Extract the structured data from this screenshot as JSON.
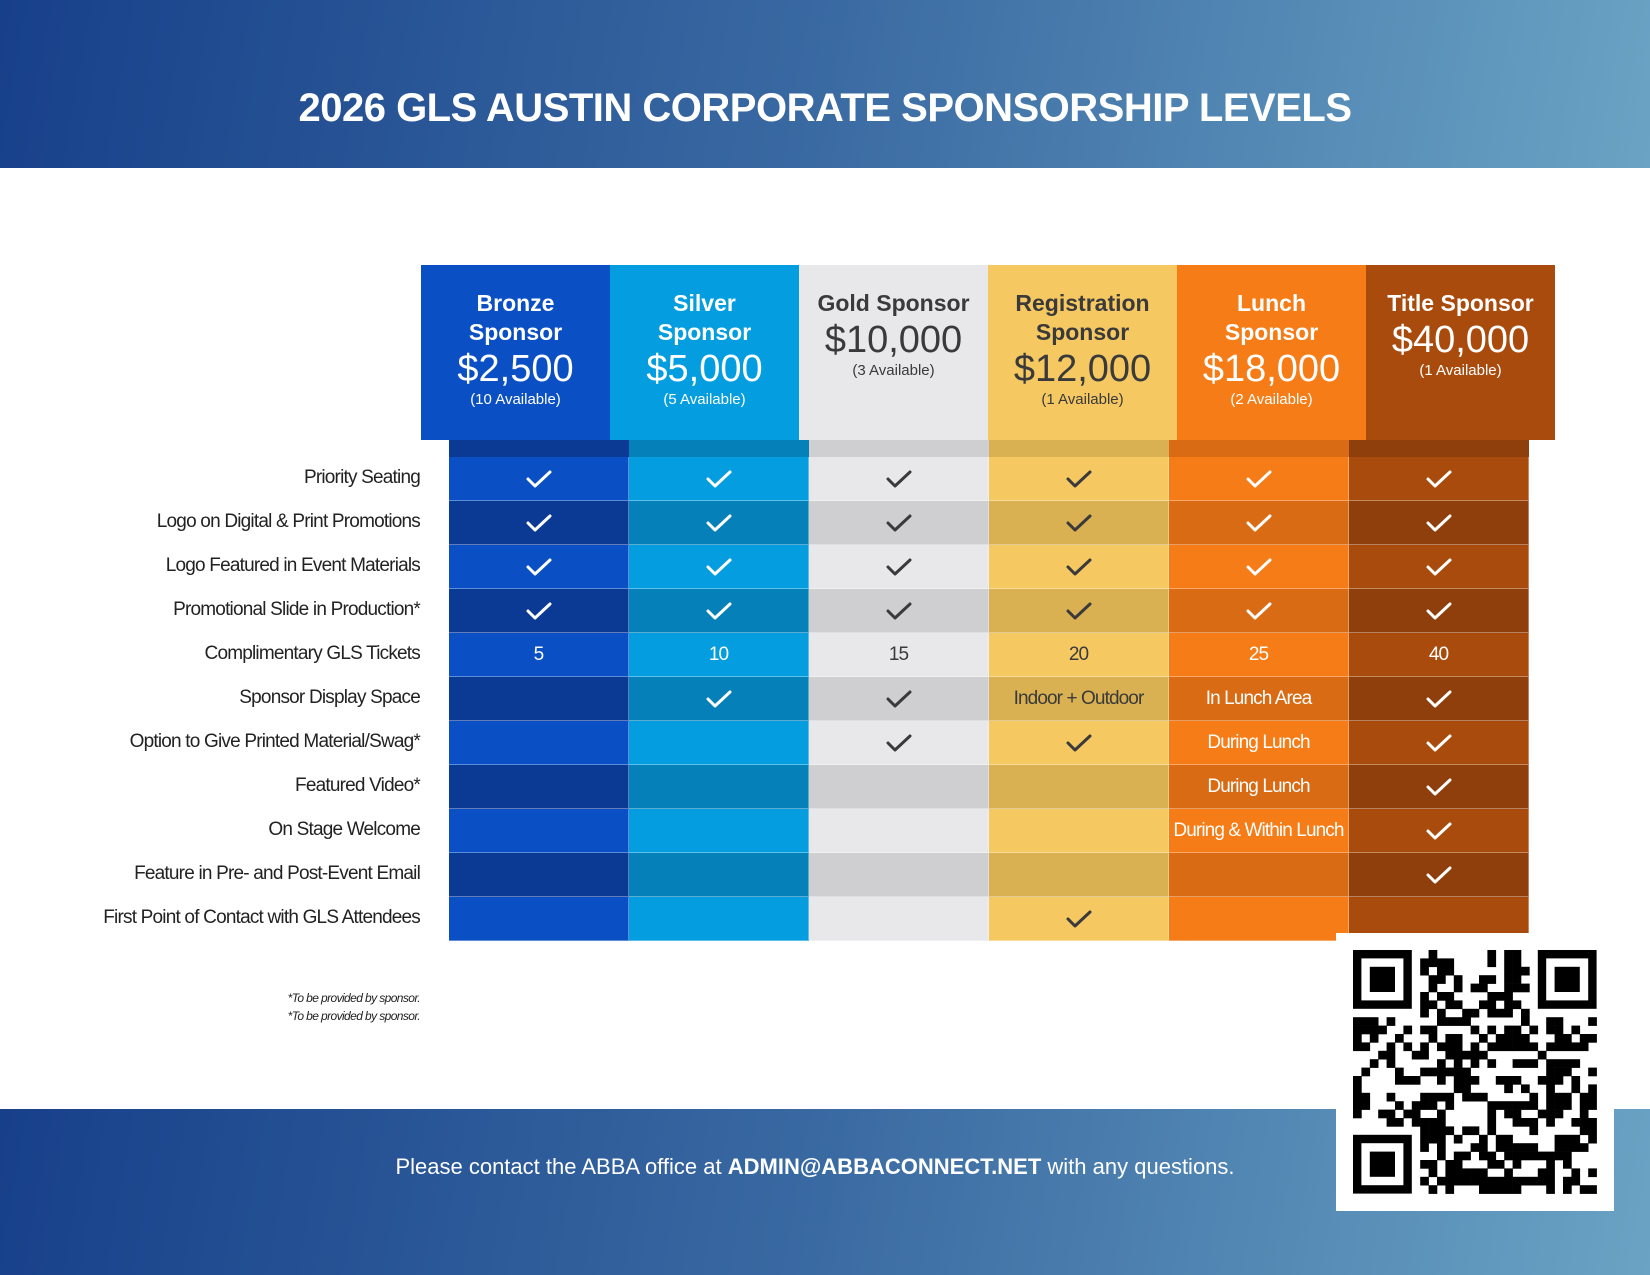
{
  "header": {
    "title": "2026 GLS AUSTIN CORPORATE SPONSORSHIP LEVELS"
  },
  "table": {
    "columns": [
      {
        "name": "Bronze Sponsor",
        "price": "$2,500",
        "availability": "(10 Available)"
      },
      {
        "name": "Silver Sponsor",
        "price": "$5,000",
        "availability": "(5 Available)"
      },
      {
        "name": "Gold Sponsor",
        "price": "$10,000",
        "availability": "(3 Available)"
      },
      {
        "name": "Registration Sponsor",
        "price": "$12,000",
        "availability": "(1 Available)"
      },
      {
        "name": "Lunch Sponsor",
        "price": "$18,000",
        "availability": "(2 Available)"
      },
      {
        "name": "Title Sponsor",
        "price": "$40,000",
        "availability": "(1 Available)"
      }
    ],
    "rows": [
      {
        "feature": "Priority Seating",
        "cells": [
          true,
          true,
          true,
          true,
          true,
          true
        ]
      },
      {
        "feature": "Logo on Digital & Print Promotions",
        "cells": [
          true,
          true,
          true,
          true,
          true,
          true
        ]
      },
      {
        "feature": "Logo Featured in Event Materials",
        "cells": [
          true,
          true,
          true,
          true,
          true,
          true
        ]
      },
      {
        "feature": "Promotional Slide in Production*",
        "cells": [
          true,
          true,
          true,
          true,
          true,
          true
        ]
      },
      {
        "feature": "Complimentary GLS Tickets",
        "cells": [
          5,
          10,
          15,
          20,
          25,
          40
        ]
      },
      {
        "feature": "Sponsor Display Space",
        "cells": [
          null,
          true,
          true,
          "Indoor + Outdoor",
          "In Lunch Area",
          true
        ]
      },
      {
        "feature": "Option to Give Printed Material/Swag*",
        "cells": [
          null,
          null,
          true,
          true,
          "During Lunch",
          true
        ]
      },
      {
        "feature": "Featured Video*",
        "cells": [
          null,
          null,
          null,
          null,
          "During Lunch",
          true
        ]
      },
      {
        "feature": "On Stage Welcome",
        "cells": [
          null,
          null,
          null,
          null,
          "During & Within Lunch",
          true
        ]
      },
      {
        "feature": "Feature in Pre- and Post-Event Email",
        "cells": [
          null,
          null,
          null,
          null,
          null,
          true
        ]
      },
      {
        "feature": "First Point of Contact with GLS Attendees",
        "cells": [
          null,
          null,
          null,
          true,
          null,
          null
        ]
      }
    ]
  },
  "footnotes": [
    "*To be provided by sponsor.",
    "*To be provided by sponsor."
  ],
  "footer": {
    "text_before": "Please contact the ABBA office at",
    "email": "ADMIN@ABBACONNECT.NET",
    "text_after": "with any questions."
  }
}
